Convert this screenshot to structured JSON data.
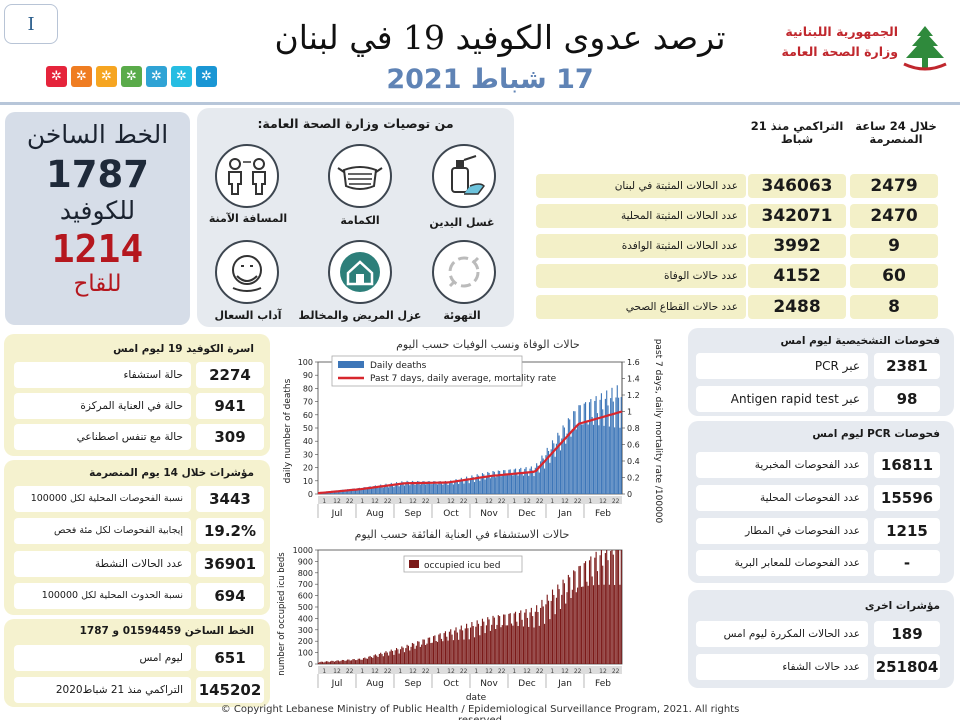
{
  "header": {
    "page_number": "I",
    "title": "ترصد عدوى الكوفيد 19 في لبنان",
    "date": "17 شباط 2021",
    "ministry_line1": "الجمهورية اللبنانية",
    "ministry_line2": "وزارة الصحة العامة",
    "sdg_colors": [
      "#e5243b",
      "#ef7d22",
      "#f6a521",
      "#5aab4a",
      "#2fa3d5",
      "#26bde2",
      "#1a96d4",
      "#2a6bb0"
    ]
  },
  "hotline": {
    "label1": "الخط الساخن",
    "number1": "1787",
    "label2": "للكوفيد",
    "number2": "1214",
    "label3": "للقاح"
  },
  "recommendations": {
    "title": "من توصيات وزارة الصحة العامة:",
    "items": [
      {
        "label": "غسل اليدين",
        "icon": "hand-sanitizer-icon"
      },
      {
        "label": "الكمامة",
        "icon": "face-mask-icon"
      },
      {
        "label": "المسافة الآمنة",
        "icon": "social-distance-icon"
      },
      {
        "label": "التهوئة",
        "icon": "ventilation-icon"
      },
      {
        "label": "عزل المريض والمخالط",
        "icon": "home-isolation-icon"
      },
      {
        "label": "آداب السعال",
        "icon": "cough-etiquette-icon"
      }
    ]
  },
  "summary": {
    "header_24h": "خلال 24 ساعة المنصرمة",
    "header_cum": "التراكمي منذ 21 شباط",
    "rows": [
      {
        "label": "عدد الحالات المثبتة في لبنان",
        "cumulative": "346063",
        "last24": "2479"
      },
      {
        "label": "عدد الحالات المثبتة المحلية",
        "cumulative": "342071",
        "last24": "2470"
      },
      {
        "label": "عدد الحالات المثبتة الوافدة",
        "cumulative": "3992",
        "last24": "9"
      },
      {
        "label": "عدد حالات الوفاة",
        "cumulative": "4152",
        "last24": "60"
      },
      {
        "label": "عدد حالات القطاع الصحي",
        "cumulative": "2488",
        "last24": "8"
      }
    ]
  },
  "hospital": {
    "title": "اسرة الكوفيد 19 ليوم امس",
    "rows": [
      {
        "label": "حالة استشفاء",
        "value": "2274"
      },
      {
        "label": "حالة في العناية المركزة",
        "value": "941"
      },
      {
        "label": "حالة مع تنفس اصطناعي",
        "value": "309"
      }
    ]
  },
  "indicators14": {
    "title": "مؤشرات خلال 14 يوم المنصرمة",
    "rows": [
      {
        "label": "نسبة الفحوصات المحلية لكل 100000",
        "value": "3443"
      },
      {
        "label": "إيجابية الفحوصات لكل مئة فحص",
        "value": "19.2%"
      },
      {
        "label": "عدد الحالات النشطة",
        "value": "36901"
      },
      {
        "label": "نسبة الحدوث المحلية لكل 100000",
        "value": "694"
      }
    ]
  },
  "hotline_calls": {
    "title": "الخط الساخن 01594459 و 1787",
    "rows": [
      {
        "label": "ليوم امس",
        "value": "651"
      },
      {
        "label": "التراكمي منذ 21 شباط2020",
        "value": "145202"
      }
    ]
  },
  "diagnostic": {
    "title": "فحوصات التشخيصية ليوم امس",
    "rows": [
      {
        "label": "عبر PCR",
        "value": "2381"
      },
      {
        "label": "عبر Antigen rapid test",
        "value": "98"
      }
    ]
  },
  "pcr": {
    "title": "فحوصات PCR ليوم امس",
    "rows": [
      {
        "label": "عدد الفحوصات المخبرية",
        "value": "16811"
      },
      {
        "label": "عدد الفحوصات المحلية",
        "value": "15596"
      },
      {
        "label": "عدد الفحوصات في المطار",
        "value": "1215"
      },
      {
        "label": "عدد الفحوصات للمعابر البرية",
        "value": "-"
      }
    ]
  },
  "other": {
    "title": "مؤشرات اخرى",
    "rows": [
      {
        "label": "عدد الحالات المكررة ليوم امس",
        "value": "189"
      },
      {
        "label": "عدد حالات الشفاء",
        "value": "251804"
      }
    ]
  },
  "chart_data": [
    {
      "type": "bar",
      "title": "حالات الوفاة ونسب الوفيات حسب اليوم",
      "ylabel": "daily number of deaths",
      "y2label": "past 7 days, daily mortality rate /100000",
      "ylim": [
        0,
        100
      ],
      "y2lim": [
        0,
        1.6
      ],
      "yticks": [
        "0",
        "10",
        "20",
        "30",
        "40",
        "50",
        "60",
        "70",
        "80",
        "90",
        "100"
      ],
      "y2ticks": [
        "0",
        "0.2",
        "0.4",
        "0.6",
        "0.8",
        "1",
        "1.2",
        "1.4",
        "1.6"
      ],
      "months": [
        "Jul",
        "Aug",
        "Sep",
        "Oct",
        "Nov",
        "Dec",
        "Jan",
        "Feb"
      ],
      "series": [
        {
          "name": "Daily deaths",
          "color": "#3d76b8",
          "kind": "bar",
          "x": [
            "Jul",
            "Aug",
            "Sep",
            "Oct",
            "Nov",
            "Dec",
            "Jan",
            "Feb"
          ],
          "values": [
            1,
            4,
            8,
            8,
            14,
            17,
            55,
            67
          ]
        },
        {
          "name": "Past 7 days, daily average, mortality rate",
          "color": "#d7262d",
          "kind": "line",
          "x": [
            "Jul",
            "Aug",
            "Sep",
            "Oct",
            "Nov",
            "Dec",
            "Jan",
            "Feb"
          ],
          "values": [
            0.01,
            0.06,
            0.13,
            0.14,
            0.22,
            0.27,
            0.85,
            1.0
          ]
        }
      ]
    },
    {
      "type": "bar",
      "title": "حالات الاستشفاء في العناية الفائقة حسب اليوم",
      "ylabel": "number of occupied icu beds",
      "xlabel": "date",
      "ylim": [
        0,
        1000
      ],
      "yticks": [
        "0",
        "100",
        "200",
        "300",
        "400",
        "500",
        "600",
        "700",
        "800",
        "900",
        "1000"
      ],
      "months": [
        "Jul",
        "Aug",
        "Sep",
        "Oct",
        "Nov",
        "Dec",
        "Jan",
        "Feb"
      ],
      "series": [
        {
          "name": "occupied icu bed",
          "color": "#7b1a19",
          "kind": "bar",
          "x": [
            "Jul",
            "Aug",
            "Sep",
            "Oct",
            "Nov",
            "Dec",
            "Jan",
            "Feb"
          ],
          "values": [
            15,
            40,
            130,
            240,
            340,
            400,
            700,
            930
          ]
        }
      ]
    }
  ],
  "footer": {
    "copyright": "© Copyright Lebanese Ministry of Public Health / Epidemiological Surveillance Program, 2021. All rights reserved"
  }
}
